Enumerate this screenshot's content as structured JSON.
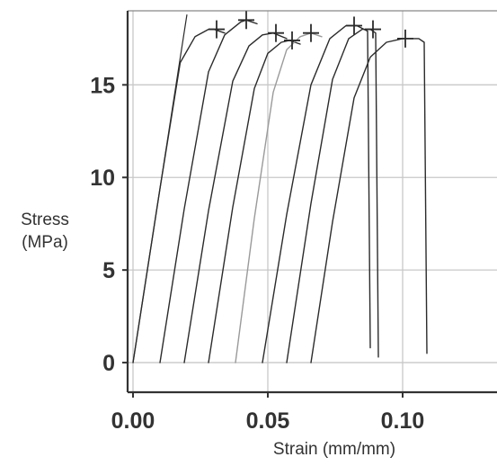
{
  "chart_data": {
    "type": "line",
    "title": "",
    "xlabel": "Strain (mm/mm)",
    "ylabel_line1": "Stress",
    "ylabel_line2": "(MPa)",
    "xlim": [
      -0.002,
      0.135
    ],
    "ylim": [
      -1.6,
      19.0
    ],
    "xticks": [
      0.0,
      0.05,
      0.1
    ],
    "xtick_labels": [
      "0.00",
      "0.05",
      "0.10"
    ],
    "yticks": [
      0,
      5,
      10,
      15
    ],
    "ytick_labels": [
      "0",
      "5",
      "10",
      "15"
    ],
    "x_gridlines": [
      0.0,
      0.05,
      0.1
    ],
    "y_gridlines": [
      0,
      5,
      10,
      15
    ],
    "grid": true,
    "legend": "none",
    "colors": {
      "curve": "#2b2b2b",
      "curve_light": "#9a9a9a",
      "grid": "#c8c8c8",
      "axis": "#333333",
      "text": "#333333"
    },
    "series": [
      {
        "values": [
          [
            0.0,
            0.0
          ],
          [
            0.01,
            9.4
          ],
          [
            0.0175,
            16.2
          ],
          [
            0.023,
            17.6
          ],
          [
            0.028,
            18.0
          ],
          [
            0.03,
            18.0
          ],
          [
            0.034,
            17.8
          ]
        ],
        "linear_extension": [
          [
            0.0,
            0.0
          ],
          [
            0.02,
            18.8
          ]
        ],
        "failure": [
          0.031,
          18.0
        ],
        "faint": false
      },
      {
        "values": [
          [
            0.01,
            0.0
          ],
          [
            0.019,
            8.3
          ],
          [
            0.028,
            15.7
          ],
          [
            0.034,
            17.7
          ],
          [
            0.04,
            18.4
          ],
          [
            0.042,
            18.5
          ],
          [
            0.046,
            18.3
          ]
        ],
        "failure": [
          0.042,
          18.5
        ],
        "faint": false
      },
      {
        "values": [
          [
            0.019,
            0.0
          ],
          [
            0.028,
            8.2
          ],
          [
            0.037,
            15.2
          ],
          [
            0.043,
            17.1
          ],
          [
            0.048,
            17.7
          ],
          [
            0.052,
            17.8
          ],
          [
            0.057,
            17.5
          ]
        ],
        "failure": [
          0.053,
          17.8
        ],
        "faint": false
      },
      {
        "values": [
          [
            0.028,
            0.0
          ],
          [
            0.037,
            8.4
          ],
          [
            0.045,
            14.8
          ],
          [
            0.05,
            16.7
          ],
          [
            0.055,
            17.3
          ],
          [
            0.058,
            17.4
          ],
          [
            0.062,
            17.2
          ]
        ],
        "failure": [
          0.059,
          17.4
        ],
        "faint": false
      },
      {
        "values": [
          [
            0.038,
            0.0
          ],
          [
            0.045,
            7.8
          ],
          [
            0.052,
            14.6
          ],
          [
            0.057,
            16.9
          ],
          [
            0.062,
            17.6
          ],
          [
            0.066,
            17.8
          ],
          [
            0.07,
            17.6
          ]
        ],
        "failure": [
          0.066,
          17.8
        ],
        "faint": true
      },
      {
        "values": [
          [
            0.048,
            0.0
          ],
          [
            0.057,
            8.0
          ],
          [
            0.066,
            15.0
          ],
          [
            0.073,
            17.5
          ],
          [
            0.079,
            18.2
          ],
          [
            0.083,
            18.2
          ],
          [
            0.087,
            17.9
          ],
          [
            0.088,
            0.8
          ]
        ],
        "failure": [
          0.082,
          18.2
        ],
        "faint": false
      },
      {
        "values": [
          [
            0.057,
            0.0
          ],
          [
            0.066,
            8.6
          ],
          [
            0.074,
            15.3
          ],
          [
            0.08,
            17.5
          ],
          [
            0.085,
            18.0
          ],
          [
            0.088,
            18.0
          ],
          [
            0.09,
            17.8
          ],
          [
            0.091,
            0.3
          ]
        ],
        "failure": [
          0.089,
          18.0
        ],
        "faint": false
      },
      {
        "values": [
          [
            0.066,
            0.0
          ],
          [
            0.074,
            7.6
          ],
          [
            0.082,
            14.3
          ],
          [
            0.088,
            16.5
          ],
          [
            0.094,
            17.3
          ],
          [
            0.1,
            17.5
          ],
          [
            0.106,
            17.5
          ],
          [
            0.108,
            17.3
          ],
          [
            0.109,
            0.5
          ]
        ],
        "failure": [
          0.101,
          17.5
        ],
        "faint": false
      }
    ]
  }
}
